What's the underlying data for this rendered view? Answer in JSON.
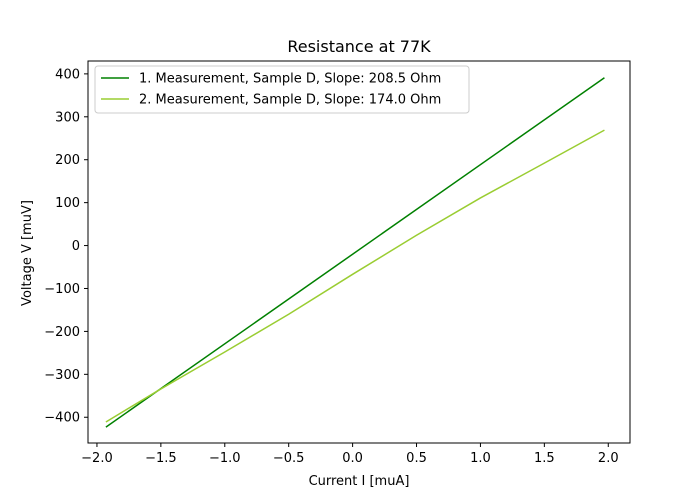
{
  "chart_data": {
    "type": "line",
    "title": "Resistance at 77K",
    "xlabel": "Current I [muA]",
    "ylabel": "Voltage V [muV]",
    "xlim": [
      -2.07,
      2.17
    ],
    "ylim": [
      -460,
      430
    ],
    "xticks": [
      -2.0,
      -1.5,
      -1.0,
      -0.5,
      0.0,
      0.5,
      1.0,
      1.5,
      2.0
    ],
    "xtick_labels": [
      "−2.0",
      "−1.5",
      "−1.0",
      "−0.5",
      "0.0",
      "0.5",
      "1.0",
      "1.5",
      "2.0"
    ],
    "yticks": [
      -400,
      -300,
      -200,
      -100,
      0,
      100,
      200,
      300,
      400
    ],
    "ytick_labels": [
      "−400",
      "−300",
      "−200",
      "−100",
      "0",
      "100",
      "200",
      "300",
      "400"
    ],
    "grid": false,
    "legend_position": "top-left",
    "series": [
      {
        "name": "1. Measurement, Sample D, Slope: 208.5 Ohm",
        "color": "#008000",
        "x": [
          -1.93,
          1.97
        ],
        "y": [
          -423,
          391
        ]
      },
      {
        "name": "2. Measurement, Sample D, Slope: 174.0 Ohm",
        "color": "#9acd32",
        "x": [
          -1.93,
          -1.5,
          -1.0,
          -0.5,
          0.0,
          0.5,
          1.0,
          1.5,
          1.97
        ],
        "y": [
          -411,
          -334,
          -248,
          -160,
          -67,
          24,
          111,
          192,
          269
        ]
      }
    ]
  }
}
